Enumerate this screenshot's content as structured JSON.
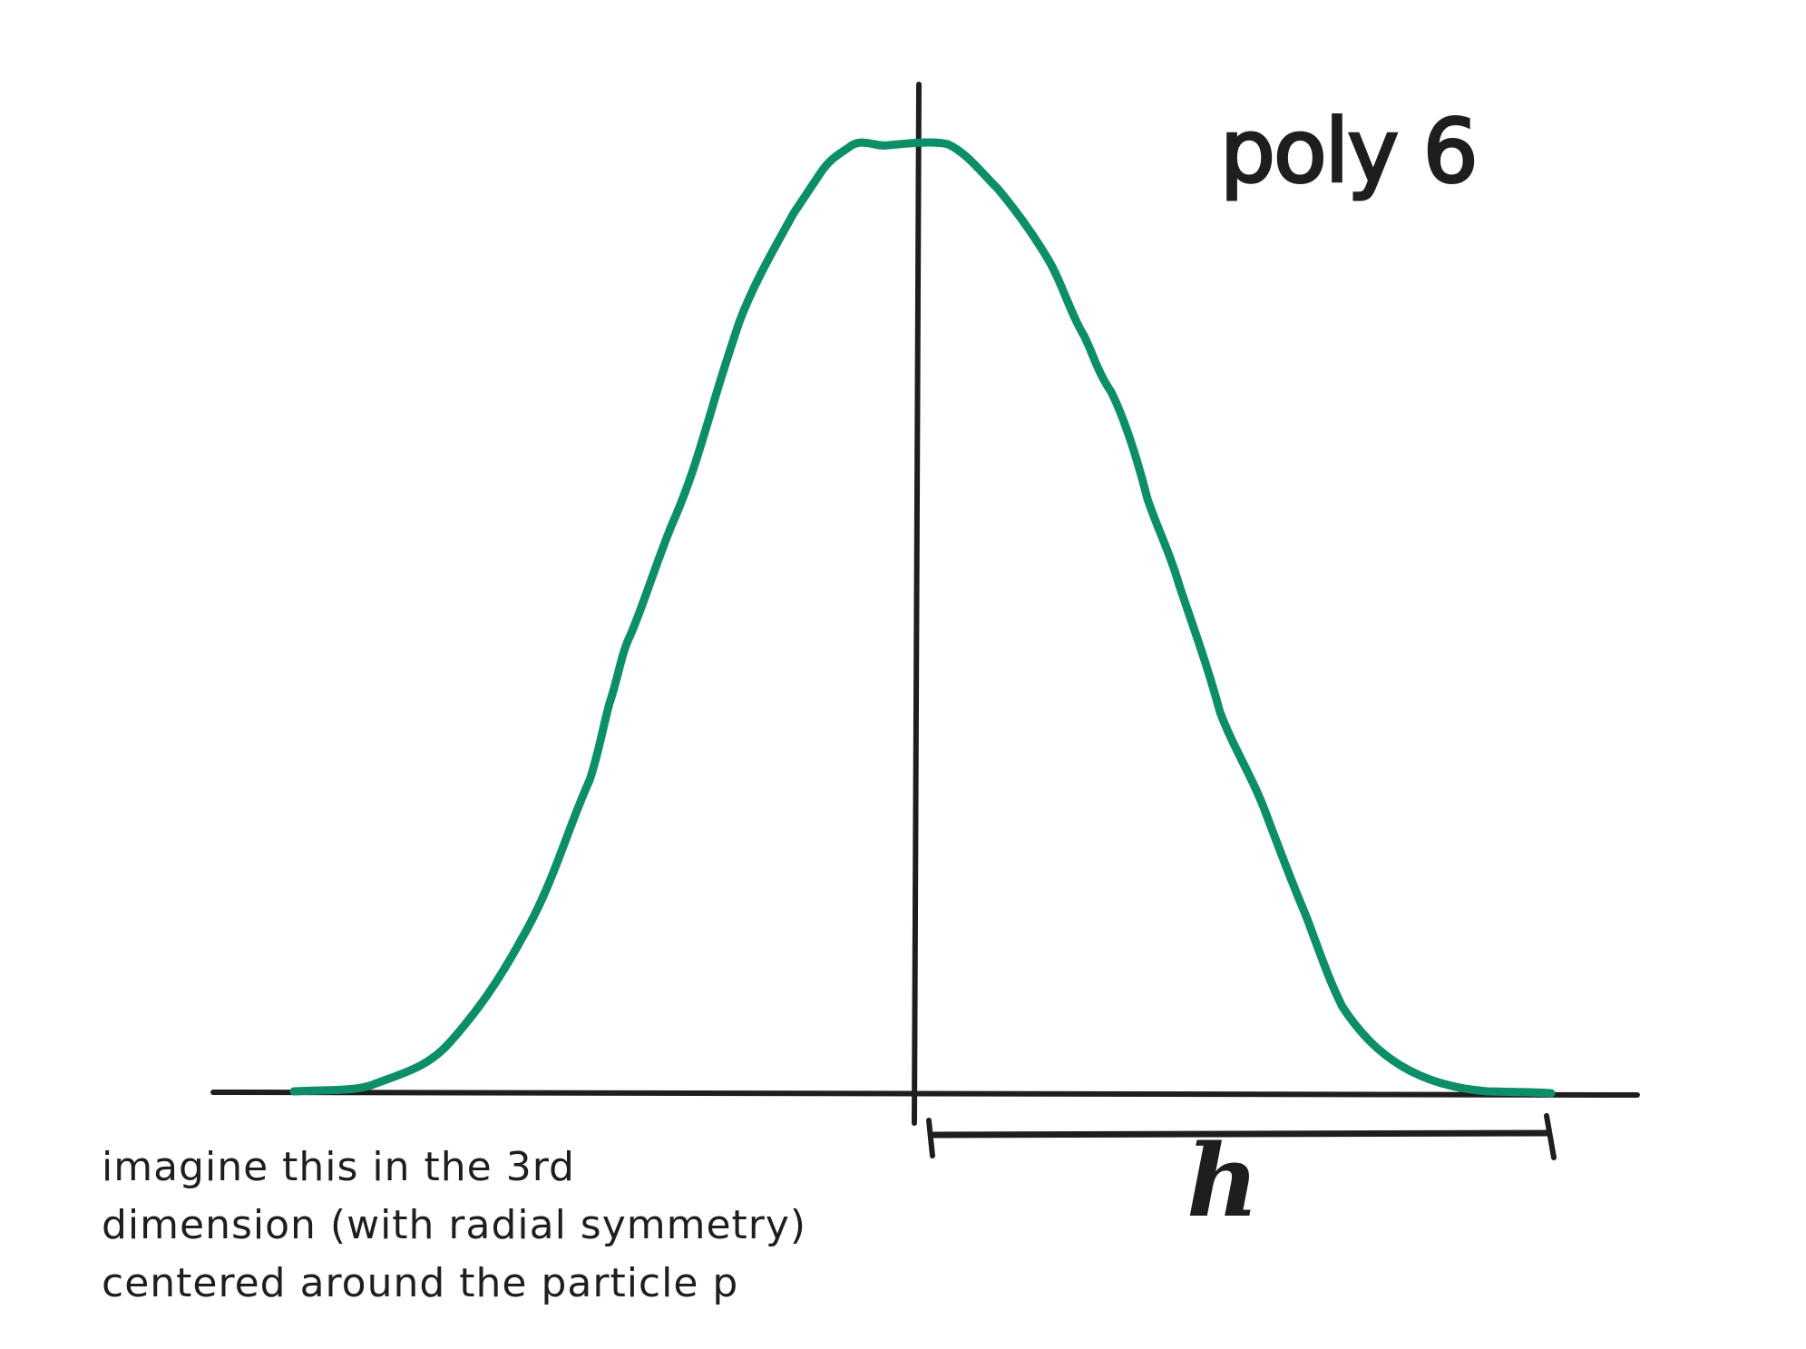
{
  "title": "poly 6",
  "width_label": "h",
  "note_lines": [
    "imagine this in the 3rd",
    "dimension (with radial symmetry)",
    "centered around the particle p"
  ],
  "colors": {
    "ink": "#1e1e1e",
    "curve": "#0c8f68",
    "background": "#ffffff"
  }
}
